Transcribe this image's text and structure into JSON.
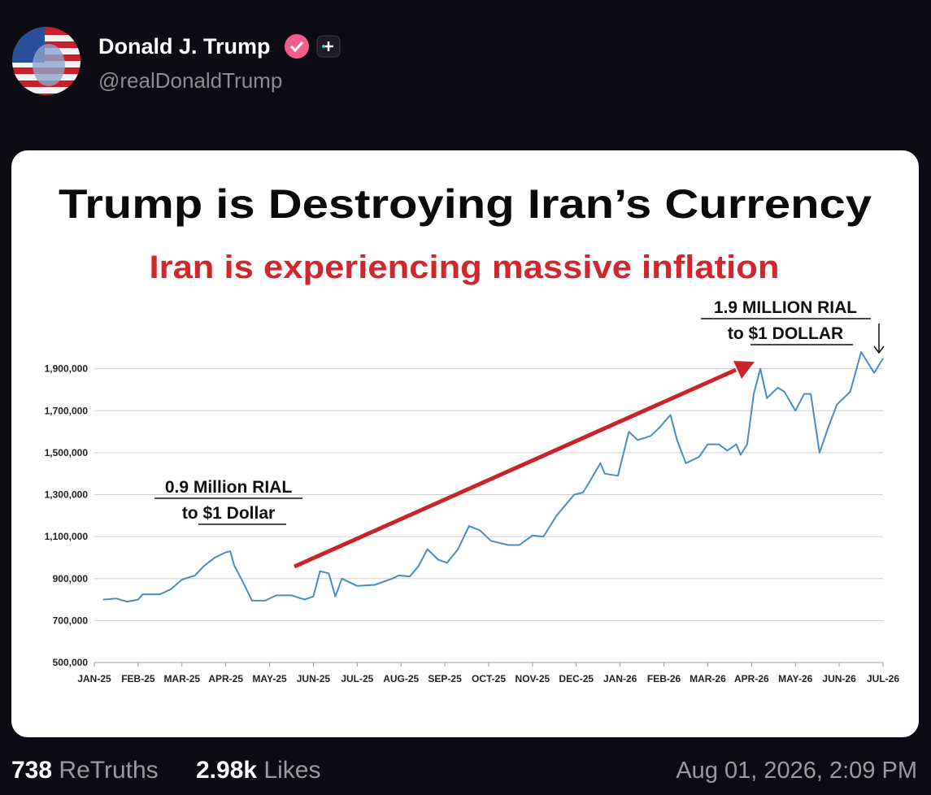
{
  "post": {
    "author": "Donald J. Trump",
    "handle": "@realDonaldTrump",
    "retruths_count": "738",
    "retruths_label": "ReTruths",
    "likes_count": "2.98k",
    "likes_label": "Likes",
    "timestamp": "Aug 01, 2026, 2:09 PM"
  },
  "chart_data": {
    "type": "line",
    "title": "Trump is Destroying Iran’s Currency",
    "subtitle": "Iran is experiencing massive inflation",
    "annotations": [
      "0.9 Million RIAL",
      "to $1 Dollar",
      "1.9 MILLION RIAL",
      "to $1 DOLLAR"
    ],
    "color": "#4a8cc2",
    "x": [
      0.2,
      0.5,
      0.75,
      1.0,
      1.1,
      1.5,
      1.75,
      2.0,
      2.3,
      2.5,
      2.75,
      3.0,
      3.1,
      3.2,
      3.4,
      3.6,
      3.9,
      4.15,
      4.5,
      4.8,
      5.0,
      5.15,
      5.35,
      5.5,
      5.65,
      6.0,
      6.4,
      6.8,
      6.95,
      7.2,
      7.4,
      7.6,
      7.85,
      8.05,
      8.3,
      8.55,
      8.8,
      9.05,
      9.45,
      9.7,
      10.0,
      10.25,
      10.55,
      10.95,
      11.15,
      11.3,
      11.55,
      11.65,
      11.95,
      12.2,
      12.4,
      12.7,
      12.9,
      13.15,
      13.3,
      13.5,
      13.8,
      14.0,
      14.25,
      14.45,
      14.65,
      14.75,
      14.9,
      15.05,
      15.2,
      15.35,
      15.6,
      15.75,
      16.0,
      16.2,
      16.35,
      16.55,
      16.75,
      16.95,
      17.25,
      17.5,
      17.65,
      17.8,
      18.0
    ],
    "values": [
      800000,
      805000,
      790000,
      800000,
      825000,
      825000,
      850000,
      895000,
      915000,
      960000,
      1000000,
      1025000,
      1030000,
      960000,
      880000,
      795000,
      795000,
      820000,
      820000,
      800000,
      815000,
      935000,
      925000,
      815000,
      900000,
      865000,
      870000,
      900000,
      915000,
      910000,
      960000,
      1040000,
      990000,
      975000,
      1040000,
      1150000,
      1130000,
      1080000,
      1060000,
      1060000,
      1105000,
      1100000,
      1200000,
      1300000,
      1310000,
      1360000,
      1450000,
      1400000,
      1390000,
      1600000,
      1560000,
      1580000,
      1620000,
      1680000,
      1560000,
      1450000,
      1480000,
      1540000,
      1540000,
      1510000,
      1540000,
      1490000,
      1540000,
      1780000,
      1900000,
      1760000,
      1810000,
      1790000,
      1700000,
      1780000,
      1780000,
      1500000,
      1620000,
      1730000,
      1790000,
      1980000,
      1930000,
      1880000,
      1950000
    ],
    "xlim": [
      0,
      18
    ],
    "xticks": [
      {
        "value": 0,
        "label": "JAN-25"
      },
      {
        "value": 1,
        "label": "FEB-25"
      },
      {
        "value": 2,
        "label": "MAR-25"
      },
      {
        "value": 3,
        "label": "APR-25"
      },
      {
        "value": 4,
        "label": "MAY-25"
      },
      {
        "value": 5,
        "label": "JUN-25"
      },
      {
        "value": 6,
        "label": "JUL-25"
      },
      {
        "value": 7,
        "label": "AUG-25"
      },
      {
        "value": 8,
        "label": "SEP-25"
      },
      {
        "value": 9,
        "label": "OCT-25"
      },
      {
        "value": 10,
        "label": "NOV-25"
      },
      {
        "value": 11,
        "label": "DEC-25"
      },
      {
        "value": 12,
        "label": "JAN-26"
      },
      {
        "value": 13,
        "label": "FEB-26"
      },
      {
        "value": 14,
        "label": "MAR-26"
      },
      {
        "value": 15,
        "label": "APR-26"
      },
      {
        "value": 16,
        "label": "MAY-26"
      },
      {
        "value": 17,
        "label": "JUN-26"
      },
      {
        "value": 18,
        "label": "JUL-26"
      }
    ],
    "ylim": [
      500000,
      1980000
    ],
    "yticks": [
      {
        "value": 500000,
        "label": "500,000"
      },
      {
        "value": 700000,
        "label": "700,000"
      },
      {
        "value": 900000,
        "label": "900,000"
      },
      {
        "value": 1100000,
        "label": "1,100,000"
      },
      {
        "value": 1300000,
        "label": "1,300,000"
      },
      {
        "value": 1500000,
        "label": "1,500,000"
      },
      {
        "value": 1700000,
        "label": "1,700,000"
      },
      {
        "value": 1900000,
        "label": "1,900,000"
      }
    ],
    "grid": true
  }
}
